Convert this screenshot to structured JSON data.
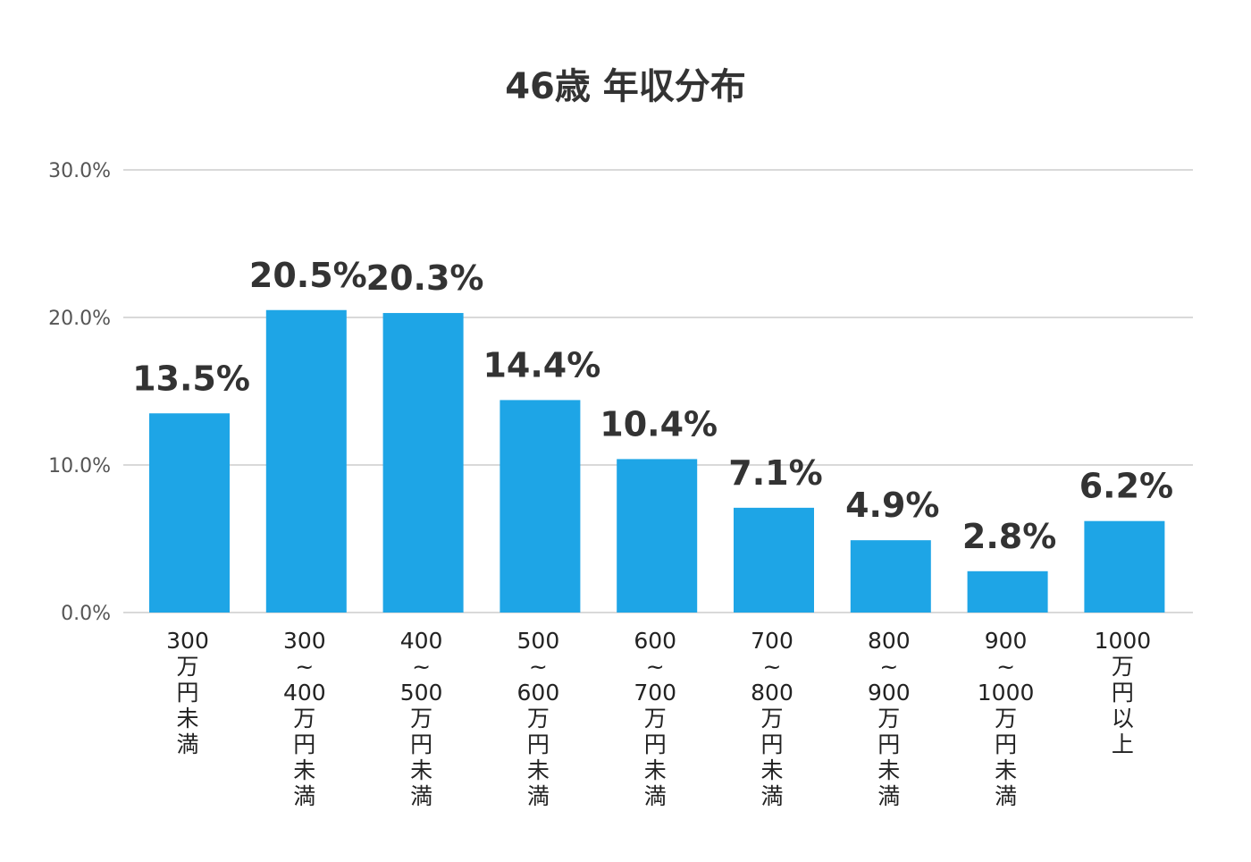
{
  "chart_data": {
    "type": "bar",
    "title": "46歳 年収分布",
    "xlabel": "",
    "ylabel": "",
    "ylim": [
      0,
      30
    ],
    "yticks": [
      "0.0%",
      "10.0%",
      "20.0%",
      "30.0%"
    ],
    "grid": true,
    "legend": "none",
    "bar_color": "#1ea5e6",
    "grid_color": "#d9d9d9",
    "text_color": "#333333",
    "categories": [
      "300\n万\n円\n未\n満",
      "300\n~\n400\n万\n円\n未\n満",
      "400\n~\n500\n万\n円\n未\n満",
      "500\n~\n600\n万\n円\n未\n満",
      "600\n~\n700\n万\n円\n未\n満",
      "700\n~\n800\n万\n円\n未\n満",
      "800\n~\n900\n万\n円\n未\n満",
      "900\n~\n1000\n万\n円\n未\n満",
      "1000\n万\n円\n以\n上"
    ],
    "values": [
      13.5,
      20.5,
      20.3,
      14.4,
      10.4,
      7.1,
      4.9,
      2.8,
      6.2
    ],
    "value_labels": [
      "13.5%",
      "20.5%",
      "20.3%",
      "14.4%",
      "10.4%",
      "7.1%",
      "4.9%",
      "2.8%",
      "6.2%"
    ]
  }
}
